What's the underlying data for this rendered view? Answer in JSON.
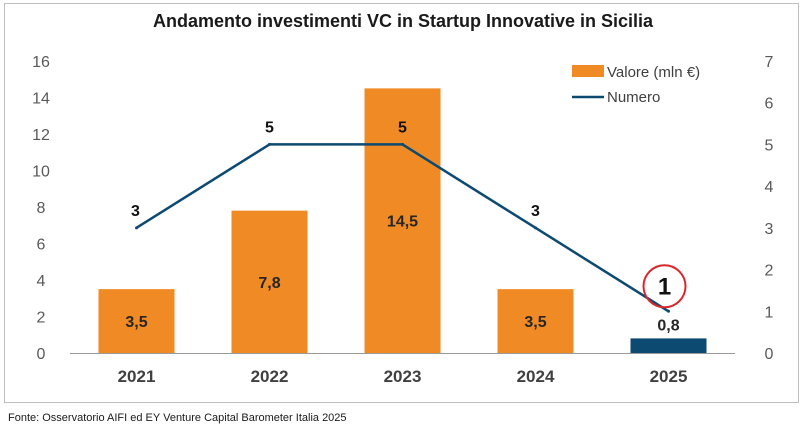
{
  "chart_data": {
    "type": "bar",
    "title": "Andamento investimenti VC in Startup Innovative in Sicilia",
    "categories": [
      "2021",
      "2022",
      "2023",
      "2024",
      "2025"
    ],
    "series": [
      {
        "name": "Valore (mln €)",
        "type": "bar",
        "axis": "left",
        "values": [
          3.5,
          7.8,
          14.5,
          3.5,
          0.8
        ],
        "labels": [
          "3,5",
          "7,8",
          "14,5",
          "3,5",
          "0,8"
        ],
        "colors": [
          "#f08a24",
          "#f08a24",
          "#f08a24",
          "#f08a24",
          "#0d4a72"
        ]
      },
      {
        "name": "Numero",
        "type": "line",
        "axis": "right",
        "values": [
          3,
          5,
          5,
          3,
          1
        ],
        "labels": [
          "3",
          "5",
          "5",
          "3",
          "1"
        ],
        "color": "#0d4a72",
        "highlighted_index": 4,
        "highlight_color": "#d9262b"
      }
    ],
    "y_left": {
      "min": 0,
      "max": 16,
      "ticks": [
        "0",
        "2",
        "4",
        "6",
        "8",
        "10",
        "12",
        "14",
        "16"
      ]
    },
    "y_right": {
      "min": 0,
      "max": 7,
      "ticks": [
        "0",
        "1",
        "2",
        "3",
        "4",
        "5",
        "6",
        "7"
      ]
    },
    "grid": false,
    "legend_position": "top-right"
  },
  "source": "Fonte: Osservatorio AIFI ed EY Venture Capital Barometer Italia 2025"
}
